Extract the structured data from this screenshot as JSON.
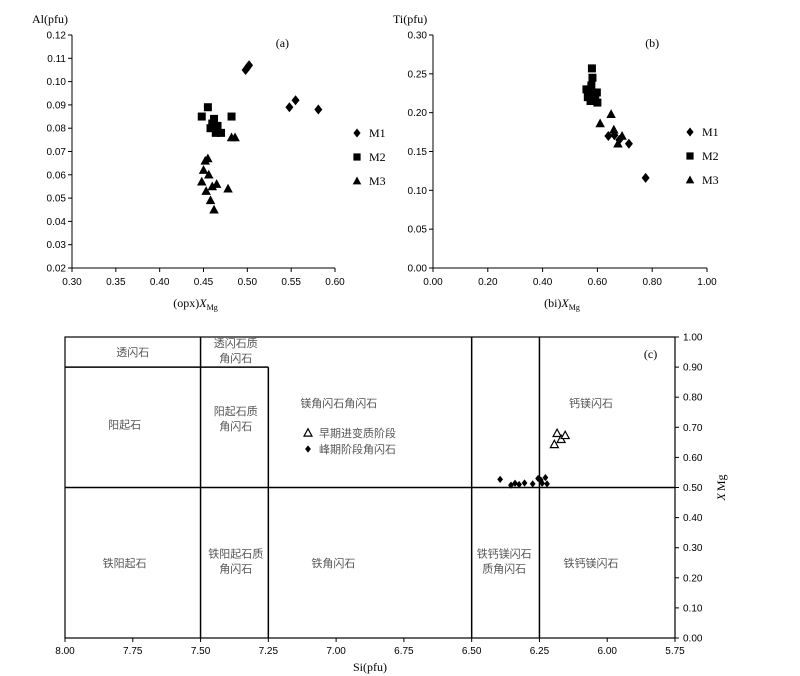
{
  "chart_data": [
    {
      "id": "a",
      "type": "scatter",
      "panel_label": "(a)",
      "ylabel": "Al(pfu)",
      "xlabel_prefix": "(opx)",
      "xlabel_main": "X",
      "xlabel_sub": "Mg",
      "xlim": [
        0.3,
        0.6
      ],
      "ylim": [
        0.02,
        0.12
      ],
      "xticks": [
        0.3,
        0.35,
        0.4,
        0.45,
        0.5,
        0.55,
        0.6
      ],
      "yticks": [
        0.02,
        0.03,
        0.04,
        0.05,
        0.06,
        0.07,
        0.08,
        0.09,
        0.1,
        0.11,
        0.12
      ],
      "xtick_labels": [
        "0.30",
        "0.35",
        "0.40",
        "0.45",
        "0.50",
        "0.55",
        "0.60"
      ],
      "ytick_labels": [
        "0.02",
        "0.03",
        "0.04",
        "0.05",
        "0.06",
        "0.07",
        "0.08",
        "0.09",
        "0.10",
        "0.11",
        "0.12"
      ],
      "series": [
        {
          "name": "M1",
          "marker": "diamond",
          "x": [
            0.498,
            0.5,
            0.502,
            0.548,
            0.555,
            0.581
          ],
          "y": [
            0.105,
            0.106,
            0.107,
            0.089,
            0.092,
            0.088
          ]
        },
        {
          "name": "M2",
          "marker": "square",
          "x": [
            0.448,
            0.455,
            0.458,
            0.46,
            0.462,
            0.464,
            0.466,
            0.47,
            0.482
          ],
          "y": [
            0.085,
            0.089,
            0.08,
            0.082,
            0.084,
            0.078,
            0.081,
            0.078,
            0.085
          ]
        },
        {
          "name": "M3",
          "marker": "triangle",
          "x": [
            0.448,
            0.45,
            0.452,
            0.453,
            0.455,
            0.456,
            0.458,
            0.46,
            0.462,
            0.465,
            0.478,
            0.482,
            0.486
          ],
          "y": [
            0.057,
            0.062,
            0.066,
            0.053,
            0.067,
            0.06,
            0.049,
            0.055,
            0.045,
            0.056,
            0.054,
            0.076,
            0.076
          ]
        }
      ]
    },
    {
      "id": "b",
      "type": "scatter",
      "panel_label": "(b)",
      "ylabel": "Ti(pfu)",
      "xlabel_prefix": "(bi)",
      "xlabel_main": "X",
      "xlabel_sub": "Mg",
      "xlim": [
        0.0,
        1.0
      ],
      "ylim": [
        0.0,
        0.3
      ],
      "xticks": [
        0.0,
        0.2,
        0.4,
        0.6,
        0.8,
        1.0
      ],
      "yticks": [
        0.0,
        0.05,
        0.1,
        0.15,
        0.2,
        0.25,
        0.3
      ],
      "xtick_labels": [
        "0.00",
        "0.20",
        "0.40",
        "0.60",
        "0.80",
        "1.00"
      ],
      "ytick_labels": [
        "0.00",
        "0.05",
        "0.10",
        "0.15",
        "0.20",
        "0.25",
        "0.30"
      ],
      "series": [
        {
          "name": "M1",
          "marker": "diamond",
          "x": [
            0.64,
            0.662,
            0.68,
            0.715,
            0.776
          ],
          "y": [
            0.17,
            0.171,
            0.165,
            0.16,
            0.116
          ]
        },
        {
          "name": "M2",
          "marker": "square",
          "x": [
            0.56,
            0.565,
            0.57,
            0.575,
            0.578,
            0.58,
            0.582,
            0.588,
            0.592,
            0.598,
            0.6
          ],
          "y": [
            0.23,
            0.22,
            0.225,
            0.215,
            0.235,
            0.257,
            0.245,
            0.222,
            0.218,
            0.226,
            0.213
          ]
        },
        {
          "name": "M3",
          "marker": "triangle",
          "x": [
            0.61,
            0.65,
            0.66,
            0.675,
            0.69
          ],
          "y": [
            0.186,
            0.198,
            0.178,
            0.16,
            0.17
          ]
        }
      ]
    },
    {
      "id": "c",
      "type": "scatter",
      "panel_label": "(c)",
      "xlabel": "Si(pfu)",
      "ylabel_main": "X",
      "ylabel_sub": "Mg",
      "xlim": [
        8.0,
        5.75
      ],
      "ylim": [
        0.0,
        1.0
      ],
      "xticks": [
        8.0,
        7.75,
        7.5,
        7.25,
        7.0,
        6.75,
        6.5,
        6.25,
        6.0,
        5.75
      ],
      "yticks": [
        0.0,
        0.1,
        0.2,
        0.3,
        0.4,
        0.5,
        0.6,
        0.7,
        0.8,
        0.9,
        1.0
      ],
      "xtick_labels": [
        "8.00",
        "7.75",
        "7.50",
        "7.25",
        "7.00",
        "6.75",
        "6.50",
        "6.25",
        "6.00",
        "5.75"
      ],
      "ytick_labels": [
        "0.00",
        "0.10",
        "0.20",
        "0.30",
        "0.40",
        "0.50",
        "0.60",
        "0.70",
        "0.80",
        "0.90",
        "1.00"
      ],
      "fields": [
        {
          "label": [
            "透闪石"
          ],
          "x": 7.75,
          "y": 0.95
        },
        {
          "label": [
            "透闪石质",
            "角闪石"
          ],
          "x": 7.37,
          "y": 0.955
        },
        {
          "label": [
            "阳起石"
          ],
          "x": 7.78,
          "y": 0.71
        },
        {
          "label": [
            "阳起石质",
            "角闪石"
          ],
          "x": 7.37,
          "y": 0.73
        },
        {
          "label": [
            "镁角闪石角闪石"
          ],
          "x": 6.99,
          "y": 0.78
        },
        {
          "label": [
            "钙镁闪石"
          ],
          "x": 6.06,
          "y": 0.78
        },
        {
          "label": [
            "铁阳起石"
          ],
          "x": 7.78,
          "y": 0.25
        },
        {
          "label": [
            "铁阳起石质",
            "角闪石"
          ],
          "x": 7.37,
          "y": 0.255
        },
        {
          "label": [
            "铁角闪石"
          ],
          "x": 7.01,
          "y": 0.25
        },
        {
          "label": [
            "铁钙镁闪石",
            "质角闪石"
          ],
          "x": 6.38,
          "y": 0.255
        },
        {
          "label": [
            "铁钙镁闪石"
          ],
          "x": 6.06,
          "y": 0.25
        }
      ],
      "series": [
        {
          "name": "早期进变质阶段",
          "marker": "open-triangle",
          "x": [
            6.195,
            6.185,
            6.17,
            6.155
          ],
          "y": [
            0.643,
            0.68,
            0.66,
            0.673
          ]
        },
        {
          "name": "峰期阶段角闪石",
          "marker": "diamond",
          "x": [
            6.395,
            6.355,
            6.34,
            6.325,
            6.305,
            6.275,
            6.255,
            6.245,
            6.24,
            6.228,
            6.222
          ],
          "y": [
            0.527,
            0.508,
            0.514,
            0.51,
            0.515,
            0.512,
            0.53,
            0.525,
            0.514,
            0.533,
            0.512
          ]
        }
      ]
    }
  ]
}
